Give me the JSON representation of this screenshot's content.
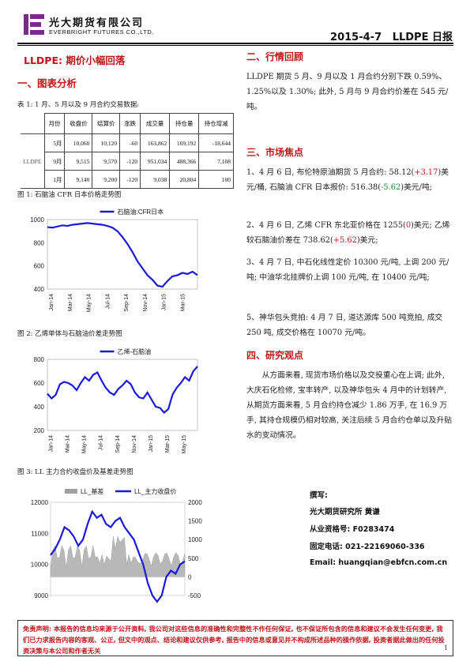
{
  "header": {
    "company_cn": "光大期货有限公司",
    "company_en": "EVERBRIGHT FUTURES CO.,LTD.",
    "date": "2015-4-7",
    "report": "LLDPE 日报"
  },
  "left": {
    "title": "LLDPE: 期价小幅回落",
    "section1": "一、图表分析",
    "table_caption": "表 1: 1 月、5 月以及 9 月合约交易数据:",
    "table": {
      "headers": [
        "月份",
        "收盘价",
        "结算价",
        "涨跌",
        "成交量",
        "持仓量",
        "持仓增减"
      ],
      "row_label": "LLDPE",
      "rows": [
        [
          "5月",
          "10,060",
          "10,120",
          "-60",
          "163,862",
          "169,192",
          "-18,644"
        ],
        [
          "9月",
          "9,515",
          "9,570",
          "-120",
          "951,034",
          "488,366",
          "7,108"
        ],
        [
          "1月",
          "9,140",
          "9,200",
          "-120",
          "9,038",
          "20,804",
          "100"
        ]
      ]
    },
    "fig1_caption": "图 1: 石脑油 CFR 日本价格走势图",
    "fig2_caption": "图 2: 乙烯单体与石脑油价差走势图",
    "fig3_caption": "图 3: LL 主力合约收盘价及基差走势图"
  },
  "right": {
    "section2": "二、行情回顾",
    "review": "LLDPE 期货 5 月、9 月以及 1 月合约分别下跌 0.59%、1.25%以及 1.30%; 此外, 5 月与 9 月合约价差在 545 元/吨。",
    "section3": "三、市场焦点",
    "f1a": "1、4 月 6 日, 布伦特原油期货 5 月合约: 58.12(",
    "f1b": "+3.17",
    "f1c": ")美元/桶, 石脑油 CFR 日本报价: 516.38(",
    "f1d": "-5.62",
    "f1e": ")美元/吨;",
    "f2a": "2、4 月 6 日, 乙烯 CFR 东北亚价格在 1255(",
    "f2b": "0",
    "f2c": ")美元; 乙烯较石脑油价差在 738.62(",
    "f2d": "+5.62",
    "f2e": ")美元;",
    "f3": "3、4 月 7 日, 中石化线性定价 10300 元/吨, 上调 200 元/吨; 中油华北挂牌价上调 100 元/吨, 在 10400 元/吨;",
    "f5": "5、神华包头竞拍: 4 月 7 日, 道达源库 500 吨竞拍, 成交 250 吨, 成交价格在 10070 元/吨。",
    "section4": "四、研究观点",
    "view": "从方面来看, 现货市场价格以及交投重心在上调; 此外, 大庆石化检修, 宝丰转产, 以及神华包头 4 月中的计划转产, 从期货方面来看, 5 月合约持仓减少 1.86 万手, 在 16.9 万手, 其持仓规模仍相对较高, 关注后续 5 月合约仓单以及升贴水的变动情况。",
    "author_title": "撰写:",
    "author_line": "光大期货研究所     黄谦",
    "cert": "从业资格号: F0283474",
    "phone": "固定电话: 021-22169060-336",
    "email": "Email:  huangqian@ebfcn.com.cn"
  },
  "footer": {
    "disclaimer": "免责声明: 本报告的信息均来源于公开资料, 我公司对这些信息的准确性和完整性不作任何保证, 也不保证所包含的信息和建议不会发生任何变更, 我们已力求报告内容的客观、公正, 但文中的观点、结论和建议仅供参考, 报告中的信息或意见并不构成所述品种的操作依据, 投资者据此做出的任何投资决策与本公司和作者无关",
    "page": "1"
  },
  "chart_data": [
    {
      "type": "line",
      "series": [
        {
          "name": "石脑油:CFR日本",
          "color": "#1a1adc",
          "values": [
            935,
            930,
            940,
            950,
            945,
            955,
            960,
            965,
            970,
            965,
            960,
            955,
            945,
            930,
            900,
            850,
            790,
            720,
            640,
            580,
            520,
            480,
            430,
            420,
            470,
            510,
            520,
            540,
            530,
            550,
            520
          ]
        }
      ],
      "x_ticks": [
        "Jan-14",
        "Mar-14",
        "May-14",
        "Jul-14",
        "Sep-14",
        "Nov-14",
        "Jan-15",
        "Mar-15"
      ],
      "ylim": [
        400,
        1000
      ],
      "y_ticks": [
        400,
        600,
        800,
        1000
      ]
    },
    {
      "type": "line",
      "series": [
        {
          "name": "乙烯-石脑油",
          "color": "#1a1adc",
          "values": [
            510,
            470,
            500,
            590,
            610,
            600,
            580,
            540,
            600,
            650,
            620,
            670,
            690,
            620,
            560,
            520,
            500,
            550,
            580,
            620,
            590,
            520,
            480,
            470,
            520,
            460,
            400,
            390,
            350,
            380,
            500,
            560,
            600,
            650,
            620,
            700,
            740
          ]
        }
      ],
      "x_ticks": [
        "Jan-14",
        "Mar-14",
        "May-14",
        "Jul-14",
        "Sep-14",
        "Nov-14",
        "Jan-15",
        "Mar-15",
        "May-15"
      ],
      "ylim": [
        200,
        800
      ],
      "y_ticks": [
        200,
        400,
        600,
        800
      ]
    },
    {
      "type": "line",
      "series": [
        {
          "name": "LL_基差",
          "color": "#a0a0a0"
        },
        {
          "name": "LL_主力收盘价",
          "color": "#1a1adc",
          "values": [
            10300,
            10500,
            10800,
            11200,
            11100,
            10900,
            10600,
            10800,
            11300,
            11700,
            11500,
            11600,
            11300,
            11200,
            11400,
            11500,
            11200,
            11000,
            10800,
            10400,
            10000,
            9400,
            9000,
            8800,
            9000,
            9600,
            9800,
            9700,
            10000,
            10100
          ]
        }
      ],
      "ylim_left": [
        9000,
        12000
      ],
      "ylim_right": [
        -500,
        2000
      ],
      "y_ticks_left": [
        9000,
        10000,
        11000,
        12000
      ],
      "y_ticks_right": [
        -500,
        0,
        500,
        1000,
        1500,
        2000
      ]
    }
  ]
}
